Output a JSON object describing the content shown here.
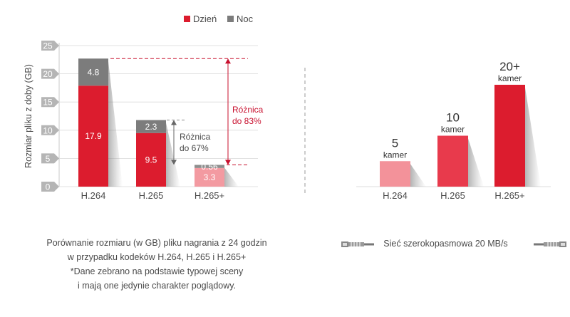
{
  "colors": {
    "day": "#dc1c2e",
    "night": "#7c7c7c",
    "h265plus_day": "#f39aa1",
    "h265plus_night": "#8e8e8e",
    "annotation_red": "#c8102e",
    "axis_tick_bg": "#b5b5b5",
    "text": "#4a4a4a"
  },
  "chart_data": [
    {
      "type": "bar",
      "stacked": true,
      "categories": [
        "H.264",
        "H.265",
        "H.265+"
      ],
      "series": [
        {
          "name": "Dzień",
          "values": [
            17.9,
            9.5,
            3.3
          ],
          "labels": [
            "17.9",
            "9.5",
            "3.3"
          ]
        },
        {
          "name": "Noc",
          "values": [
            4.8,
            2.3,
            0.56
          ],
          "labels": [
            "4.8",
            "2.3",
            "0.56"
          ]
        }
      ],
      "ylabel": "Rozmiar pliku z doby (GB)",
      "yticks": [
        0,
        5,
        10,
        15,
        20,
        25
      ],
      "ylim": [
        0,
        25
      ],
      "legend": {
        "position": "top",
        "items": [
          "Dzień",
          "Noc"
        ]
      },
      "annotations": [
        {
          "from": "H.265",
          "text": [
            "Różnica",
            "do 67%"
          ],
          "color": "gray"
        },
        {
          "from": "H.264",
          "text": [
            "Różnica",
            "do 83%"
          ],
          "color": "red"
        }
      ]
    },
    {
      "type": "bar",
      "categories": [
        "H.264",
        "H.265",
        "H.265+"
      ],
      "values": [
        5,
        10,
        20
      ],
      "value_labels": [
        "5",
        "10",
        "20+"
      ],
      "unit_label": "kamer"
    }
  ],
  "caption": {
    "lines": [
      "Porównanie rozmiaru (w GB) pliku nagrania z 24 godzin",
      "w przypadku kodeków H.264, H.265 i H.265+",
      "*Dane zebrano na podstawie typowej sceny",
      "i mają one jedynie charakter poglądowy."
    ]
  },
  "network": {
    "label": "Sieć szerokopasmowa 20 MB/s",
    "left_icon": "network-cable-icon",
    "right_icon": "network-cable-icon"
  }
}
